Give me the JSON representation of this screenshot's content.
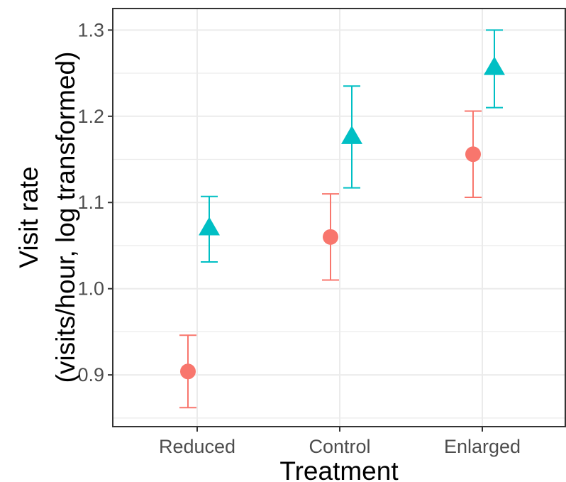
{
  "chart_data": {
    "type": "scatter",
    "xlabel": "Treatment",
    "ylabel_line1": "Visit rate",
    "ylabel_line2": "(visits/hour, log transformed)",
    "categories": [
      "Reduced",
      "Control",
      "Enlarged"
    ],
    "yticks": [
      "0.9",
      "1.0",
      "1.1",
      "1.2",
      "1.3"
    ],
    "ylim": [
      0.84,
      1.325
    ],
    "grid": true,
    "legend": "none",
    "series": [
      {
        "color": "#F8766D",
        "marker": "circle",
        "values": [
          0.904,
          1.06,
          1.156
        ],
        "lower": [
          0.862,
          1.01,
          1.106
        ],
        "upper": [
          0.946,
          1.11,
          1.206
        ]
      },
      {
        "color": "#00BFC4",
        "marker": "triangle",
        "values": [
          1.07,
          1.176,
          1.256
        ],
        "lower": [
          1.031,
          1.117,
          1.21
        ],
        "upper": [
          1.107,
          1.235,
          1.3
        ]
      }
    ]
  }
}
